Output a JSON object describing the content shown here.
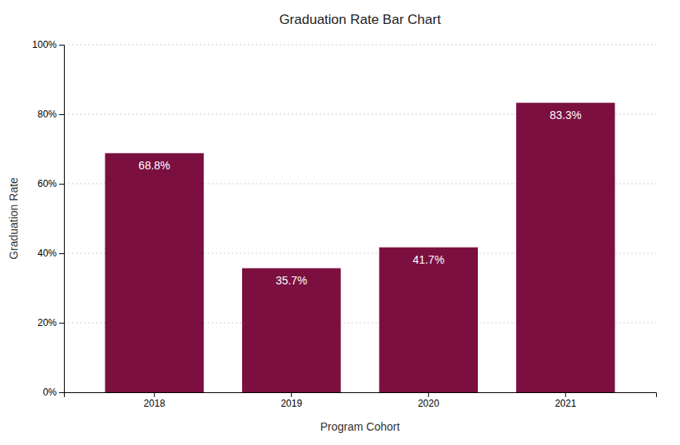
{
  "chart_data": {
    "type": "bar",
    "title": "Graduation Rate Bar Chart",
    "x_label": "Program Cohort",
    "y_label": "Graduation Rate",
    "categories": [
      "2018",
      "2019",
      "2020",
      "2021"
    ],
    "values": [
      68.8,
      35.7,
      41.7,
      83.3
    ],
    "value_labels": [
      "68.8%",
      "35.7%",
      "41.7%",
      "83.3%"
    ],
    "data_labels": true,
    "color": "#7b1040",
    "ylim": [
      0,
      100
    ],
    "yticks": [
      {
        "value": 0,
        "label": "0%"
      },
      {
        "value": 20,
        "label": "20%"
      },
      {
        "value": 40,
        "label": "40%"
      },
      {
        "value": 60,
        "label": "60%"
      },
      {
        "value": 80,
        "label": "80%"
      },
      {
        "value": 100,
        "label": "100%"
      }
    ],
    "grid": true
  }
}
